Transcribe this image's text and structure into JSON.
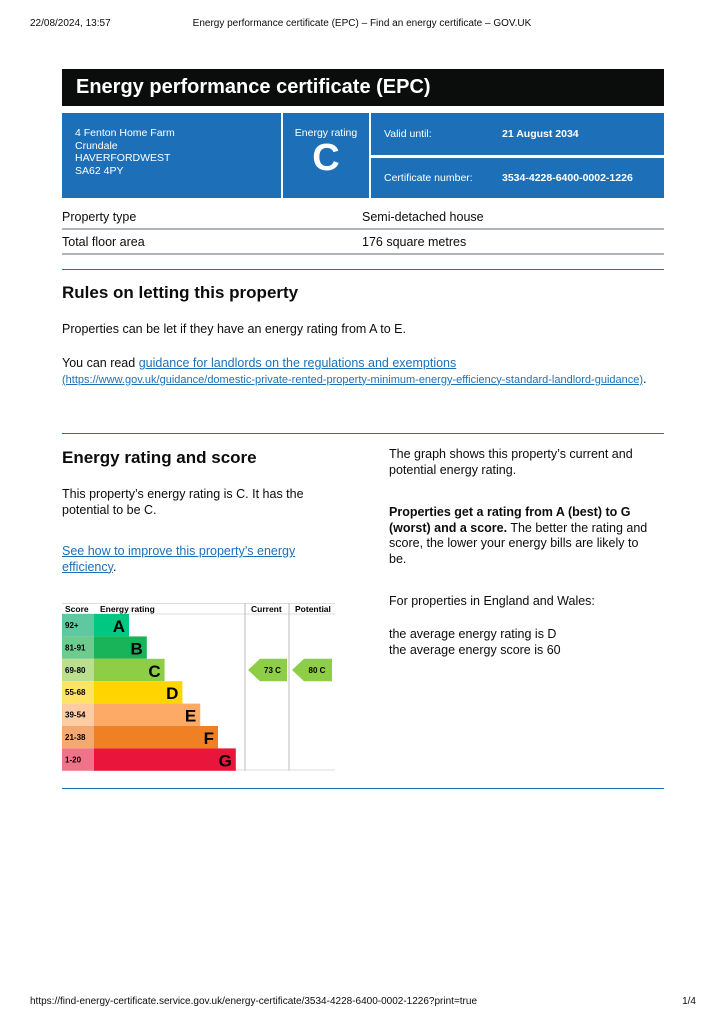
{
  "browser": {
    "datetime": "22/08/2024, 13:57",
    "page_title": "Energy performance certificate (EPC) – Find an energy certificate – GOV.UK",
    "url": "https://find-energy-certificate.service.gov.uk/energy-certificate/3534-4228-6400-0002-1226?print=true",
    "page_count": "1/4"
  },
  "title": "Energy performance certificate (EPC)",
  "address": [
    "4 Fenton Home Farm",
    "Crundale",
    "HAVERFORDWEST",
    "SA62 4PY"
  ],
  "rating": {
    "label": "Energy rating",
    "value": "C"
  },
  "valid_until": {
    "label": "Valid until:",
    "value": "21 August 2034"
  },
  "certificate": {
    "label": "Certificate number:",
    "value": "3534-4228-6400-0002-1226"
  },
  "property": [
    {
      "k": "Property type",
      "v": "Semi-detached house"
    },
    {
      "k": "Total floor area",
      "v": "176 square metres"
    }
  ],
  "letting": {
    "heading": "Rules on letting this property",
    "p1": "Properties can be let if they have an energy rating from A to E.",
    "p2_pre": "You can read ",
    "p2_link": "guidance for landlords on the regulations and exemptions",
    "p2_url": "(https://www.gov.uk/guidance/domestic-private-rented-property-minimum-energy-efficiency-standard-landlord-guidance)",
    "p2_post": "."
  },
  "score": {
    "heading": "Energy rating and score",
    "p1": "This property’s energy rating is C. It has the potential to be C.",
    "link": "See how to improve this property’s energy efficiency",
    "link_post": ".",
    "r1": "The graph shows this property’s current and potential energy rating.",
    "r2_bold": "Properties get a rating from A (best) to G (worst) and a score.",
    "r2": " The better the rating and score, the lower your energy bills are likely to be.",
    "r3": "For properties in England and Wales:",
    "r4": "the average energy rating is D",
    "r5": "the average energy score is 60"
  },
  "chart_data": {
    "type": "bar",
    "headers": [
      "Score",
      "Energy rating",
      "Current",
      "Potential"
    ],
    "bands": [
      {
        "letter": "A",
        "range": "92+",
        "color": "#00c781",
        "score_bg": "#5fc8a0"
      },
      {
        "letter": "B",
        "range": "81-91",
        "color": "#19b459",
        "score_bg": "#6ccb8e"
      },
      {
        "letter": "C",
        "range": "69-80",
        "color": "#8dce46",
        "score_bg": "#badf8e"
      },
      {
        "letter": "D",
        "range": "55-68",
        "color": "#ffd500",
        "score_bg": "#ffe266"
      },
      {
        "letter": "E",
        "range": "39-54",
        "color": "#fcaa65",
        "score_bg": "#fdcca3"
      },
      {
        "letter": "F",
        "range": "21-38",
        "color": "#ef8023",
        "score_bg": "#f4a971"
      },
      {
        "letter": "G",
        "range": "1-20",
        "color": "#e9153b",
        "score_bg": "#f07489"
      }
    ],
    "current": {
      "score": 73,
      "band": "C",
      "label": "73  C"
    },
    "potential": {
      "score": 80,
      "band": "C",
      "label": "80  C"
    }
  }
}
